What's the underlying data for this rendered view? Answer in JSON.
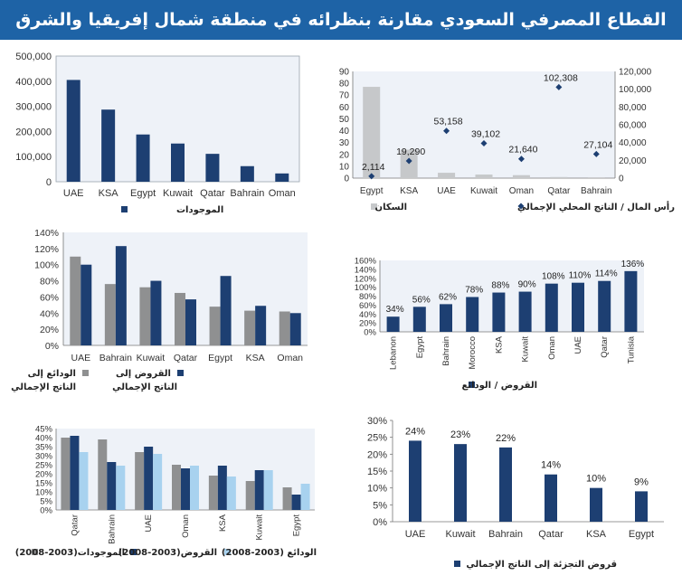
{
  "page": {
    "title": "القطاع المصرفي السعودي مقارنة بنظرائه في منطقة شمال إفريقيا والشرق الأوسط"
  },
  "colors": {
    "header_bg": "#1e63a6",
    "navy": "#1d3f72",
    "gray": "#8f9091",
    "light_gray": "#c6c8ca",
    "light_blue": "#a8d2ef",
    "plot_bg": "#eef2f8"
  },
  "chart_data": [
    {
      "id": "assets",
      "type": "bar",
      "categories": [
        "UAE",
        "KSA",
        "Egypt",
        "Kuwait",
        "Qatar",
        "Bahrain",
        "Oman"
      ],
      "series": [
        {
          "name": "الموجودات",
          "values": [
            405000,
            287000,
            188000,
            152000,
            111000,
            62000,
            33000
          ]
        }
      ],
      "yticks": [
        "0",
        "100,000",
        "200,000",
        "300,000",
        "400,000",
        "500,000"
      ],
      "ylim": [
        0,
        500000
      ]
    },
    {
      "id": "population-gdp",
      "type": "bar",
      "categories": [
        "Egypt",
        "KSA",
        "UAE",
        "Kuwait",
        "Oman",
        "Qatar",
        "Bahrain"
      ],
      "series": [
        {
          "name": "السكان",
          "values": [
            77,
            24,
            4.5,
            3,
            2.5,
            0.9,
            0.7
          ],
          "axis": "left"
        },
        {
          "name": "رأس المال / الناتج المحلي الإجمالي",
          "values": [
            2114,
            19290,
            53158,
            39102,
            21640,
            102308,
            27104
          ],
          "axis": "right"
        }
      ],
      "data_labels": [
        "2,114",
        "19,290",
        "53,158",
        "39,102",
        "21,640",
        "102,308",
        "27,104"
      ],
      "yticks_left": [
        "0",
        "10",
        "20",
        "30",
        "40",
        "50",
        "60",
        "70",
        "80",
        "90"
      ],
      "yticks_right": [
        "0",
        "20,000",
        "40,000",
        "60,000",
        "80,000",
        "100,000",
        "120,000"
      ],
      "ylim_left": [
        0,
        90
      ],
      "ylim_right": [
        0,
        120000
      ]
    },
    {
      "id": "deposits-loans-gdp",
      "type": "bar",
      "categories": [
        "UAE",
        "Bahrain",
        "Kuwait",
        "Qatar",
        "Egypt",
        "KSA",
        "Oman"
      ],
      "series": [
        {
          "name": "الودائع إلى الناتج الإجمالي",
          "values": [
            110,
            76,
            72,
            65,
            48,
            43,
            42
          ]
        },
        {
          "name": "القروض إلى الناتج الإجمالي",
          "values": [
            100,
            123,
            80,
            57,
            86,
            49,
            40
          ]
        }
      ],
      "legend_lines": {
        "deposits": [
          "الودائع إلى",
          "الناتج الإجمالي"
        ],
        "loans": [
          "القروض إلى",
          "الناتج الإجمالي"
        ]
      },
      "yticks": [
        "0%",
        "20%",
        "40%",
        "60%",
        "80%",
        "100%",
        "120%",
        "140%"
      ],
      "ylim": [
        0,
        140
      ]
    },
    {
      "id": "loans-deposits",
      "type": "bar",
      "categories": [
        "Lebanon",
        "Egypt",
        "Bahrain",
        "Morocco",
        "KSA",
        "Kuwait",
        "Oman",
        "UAE",
        "Qatar",
        "Tunisia"
      ],
      "series": [
        {
          "name": "القروض / الودائع",
          "values": [
            34,
            56,
            62,
            78,
            88,
            90,
            108,
            110,
            114,
            136
          ]
        }
      ],
      "data_labels": [
        "34%",
        "56%",
        "62%",
        "78%",
        "88%",
        "90%",
        "108%",
        "110%",
        "114%",
        "136%"
      ],
      "yticks": [
        "0%",
        "20%",
        "40%",
        "60%",
        "80%",
        "100%",
        "120%",
        "140%",
        "160%"
      ],
      "ylim": [
        0,
        160
      ]
    },
    {
      "id": "growth-2003-2008",
      "type": "bar",
      "categories": [
        "Qatar",
        "Bahrain",
        "UAE",
        "Oman",
        "KSA",
        "Kuwait",
        "Egypt"
      ],
      "series": [
        {
          "name": "الموجودات(2003-2008)",
          "values": [
            40,
            39,
            32,
            25,
            19,
            16,
            12.5
          ]
        },
        {
          "name": "القروض(2003-2008)",
          "values": [
            41,
            26.5,
            35,
            23,
            24.5,
            22,
            8.5
          ]
        },
        {
          "name": "الودائع (2003-2008)",
          "values": [
            32,
            24.5,
            31,
            24.5,
            18.5,
            22,
            14.5
          ]
        }
      ],
      "yticks": [
        "0%",
        "5%",
        "10%",
        "15%",
        "20%",
        "25%",
        "30%",
        "35%",
        "40%",
        "45%"
      ],
      "ylim": [
        0,
        45
      ]
    },
    {
      "id": "retail-loans-gdp",
      "type": "bar",
      "categories": [
        "UAE",
        "Kuwait",
        "Bahrain",
        "Qatar",
        "KSA",
        "Egypt"
      ],
      "series": [
        {
          "name": "قروض التجزئة إلى الناتج الإجمالي",
          "values": [
            24,
            23,
            22,
            14,
            10,
            9
          ]
        }
      ],
      "data_labels": [
        "24%",
        "23%",
        "22%",
        "14%",
        "10%",
        "9%"
      ],
      "yticks": [
        "0%",
        "5%",
        "10%",
        "15%",
        "20%",
        "25%",
        "30%"
      ],
      "ylim": [
        0,
        30
      ]
    }
  ]
}
